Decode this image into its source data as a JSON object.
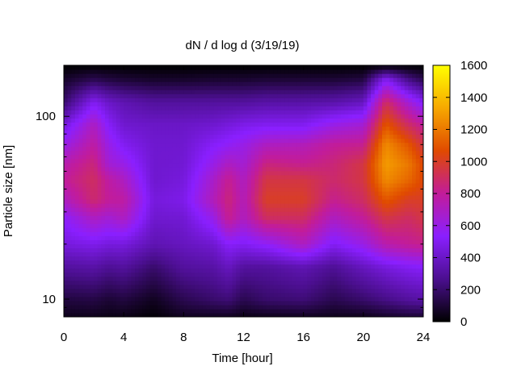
{
  "chart_data": {
    "type": "heatmap",
    "title": "dN / d log d (3/19/19)",
    "xlabel": "Time [hour]",
    "ylabel": "Particle size [nm]",
    "xlim": [
      0,
      24
    ],
    "ylim": [
      8,
      190
    ],
    "yscale": "log",
    "x_ticks": [
      0,
      4,
      8,
      12,
      16,
      20,
      24
    ],
    "y_ticks": [
      10,
      100
    ],
    "colorbar": {
      "range": [
        0,
        1600
      ],
      "ticks": [
        0,
        200,
        400,
        600,
        800,
        1000,
        1200,
        1400,
        1600
      ],
      "colormap": "gnuplot-pm3d",
      "stops": [
        "#000000",
        "#4b0f8f",
        "#8a1fff",
        "#c21c9a",
        "#e04a00",
        "#f7a800",
        "#ffff00"
      ]
    },
    "cells": {
      "time_hours": [
        0,
        2,
        3,
        4,
        6,
        8,
        10,
        11,
        12,
        13.5,
        16,
        18,
        20,
        21.5,
        23,
        24
      ],
      "size_nm": [
        8,
        10,
        15,
        20,
        28,
        35,
        45,
        55,
        70,
        90,
        120,
        160,
        190
      ],
      "values": [
        [
          50,
          120,
          300,
          450,
          550,
          700,
          800,
          750,
          600,
          450,
          200,
          80,
          0
        ],
        [
          50,
          130,
          320,
          480,
          700,
          880,
          900,
          860,
          780,
          700,
          500,
          150,
          0
        ],
        [
          40,
          100,
          280,
          450,
          650,
          800,
          780,
          650,
          600,
          520,
          400,
          120,
          0
        ],
        [
          40,
          120,
          300,
          450,
          700,
          780,
          700,
          600,
          500,
          420,
          350,
          100,
          0
        ],
        [
          10,
          60,
          200,
          350,
          420,
          450,
          420,
          420,
          420,
          400,
          300,
          80,
          0
        ],
        [
          60,
          150,
          300,
          380,
          430,
          480,
          450,
          430,
          420,
          400,
          300,
          80,
          0
        ],
        [
          60,
          200,
          320,
          420,
          600,
          720,
          680,
          600,
          520,
          420,
          300,
          90,
          0
        ],
        [
          60,
          220,
          380,
          520,
          820,
          860,
          820,
          700,
          560,
          450,
          300,
          90,
          0
        ],
        [
          40,
          150,
          300,
          500,
          700,
          720,
          700,
          650,
          600,
          480,
          300,
          90,
          0
        ],
        [
          50,
          200,
          300,
          550,
          900,
          1000,
          950,
          850,
          700,
          500,
          320,
          100,
          0
        ],
        [
          60,
          220,
          350,
          700,
          900,
          1000,
          950,
          820,
          720,
          500,
          320,
          100,
          0
        ],
        [
          50,
          150,
          280,
          500,
          700,
          820,
          880,
          860,
          800,
          600,
          330,
          100,
          0
        ],
        [
          50,
          200,
          380,
          600,
          800,
          900,
          950,
          950,
          820,
          650,
          380,
          120,
          0
        ],
        [
          80,
          250,
          450,
          750,
          950,
          1100,
          1250,
          1300,
          1250,
          1100,
          900,
          500,
          0
        ],
        [
          100,
          300,
          500,
          800,
          900,
          1000,
          1150,
          1200,
          1100,
          900,
          650,
          250,
          0
        ],
        [
          100,
          320,
          520,
          820,
          950,
          1000,
          1050,
          1050,
          950,
          800,
          500,
          150,
          0
        ]
      ]
    }
  }
}
